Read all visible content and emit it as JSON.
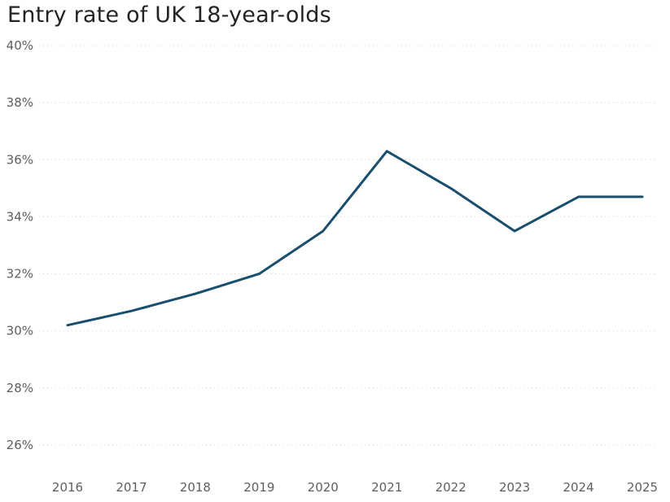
{
  "chart_data": {
    "type": "line",
    "title": "Entry rate of UK 18-year-olds",
    "xlabel": "",
    "ylabel": "",
    "x": [
      "2016",
      "2017",
      "2018",
      "2019",
      "2020",
      "2021",
      "2022",
      "2023",
      "2024",
      "2025"
    ],
    "series": [
      {
        "values": [
          30.2,
          30.7,
          31.3,
          32.0,
          33.5,
          36.3,
          35.0,
          33.5,
          34.7,
          34.7
        ],
        "color": "#184e6e"
      }
    ],
    "ylim": [
      25,
      40
    ],
    "y_ticks": [
      26,
      28,
      30,
      32,
      34,
      36,
      38,
      40
    ],
    "y_tick_labels": [
      "26%",
      "28%",
      "30%",
      "32%",
      "34%",
      "36%",
      "38%",
      "40%"
    ],
    "grid": true,
    "grid_style": "dotted-horizontal",
    "legend": "none"
  }
}
